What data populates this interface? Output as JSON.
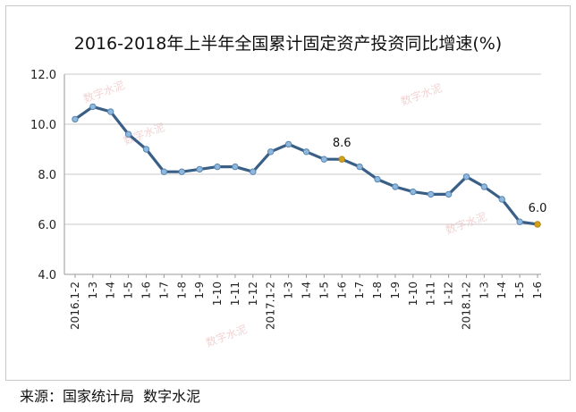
{
  "source": "来源：国家统计局  数字水泥",
  "watermark": "数字水泥",
  "chart_data": {
    "type": "line",
    "title": "2016-2018年上半年全国累计固定资产投资同比增速(%)",
    "xlabel": "",
    "ylabel": "",
    "ylim": [
      4.0,
      12.0
    ],
    "yticks": [
      "4.0",
      "6.0",
      "8.0",
      "10.0",
      "12.0"
    ],
    "grid": true,
    "line_color": "#3a5f86",
    "marker_color": "#8fb8dd",
    "highlight_color": "#d4a21a",
    "categories": [
      "2016.1-2",
      "1-3",
      "1-4",
      "1-5",
      "1-6",
      "1-7",
      "1-8",
      "1-9",
      "1-10",
      "1-11",
      "1-12",
      "2017.1-2",
      "1-3",
      "1-4",
      "1-5",
      "1-6",
      "1-7",
      "1-8",
      "1-9",
      "1-10",
      "1-11",
      "1-12",
      "2018.1-2",
      "1-3",
      "1-4",
      "1-5",
      "1-6"
    ],
    "values": [
      10.2,
      10.7,
      10.5,
      9.6,
      9.0,
      8.1,
      8.1,
      8.2,
      8.3,
      8.3,
      8.1,
      8.9,
      9.2,
      8.9,
      8.6,
      8.6,
      8.3,
      7.8,
      7.5,
      7.3,
      7.2,
      7.2,
      7.9,
      7.5,
      7.0,
      6.1,
      6.0
    ],
    "data_labels": [
      {
        "index": 15,
        "text": "8.6"
      },
      {
        "index": 26,
        "text": "6.0"
      }
    ]
  }
}
